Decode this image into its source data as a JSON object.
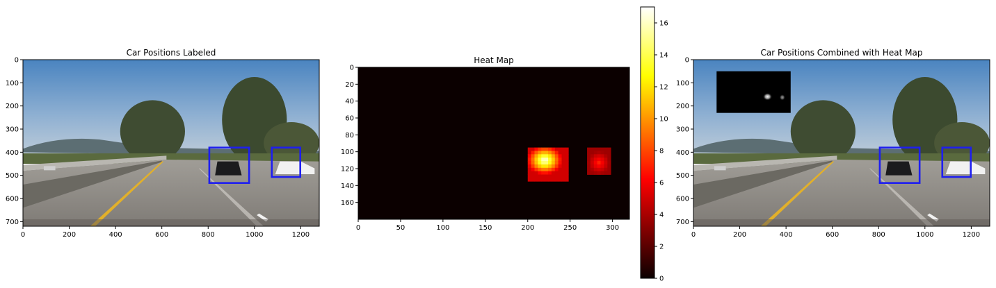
{
  "colors": {
    "bounding_box": "#1e1ef0",
    "sky_top": "#4b86c2",
    "sky_bottom": "#b7c9d9",
    "road": "#8e8b86",
    "lane_line": "#e7b526",
    "heat_background": "#0b0000"
  },
  "chart_data": [
    {
      "type": "image",
      "title": "Car Positions Labeled",
      "xlim": [
        0,
        1280
      ],
      "ylim": [
        720,
        0
      ],
      "xticks": [
        0,
        200,
        400,
        600,
        800,
        1000,
        1200
      ],
      "yticks": [
        0,
        100,
        200,
        300,
        400,
        500,
        600,
        700
      ],
      "boxes": [
        {
          "x0": 805,
          "y0": 380,
          "x1": 977,
          "y1": 533
        },
        {
          "x0": 1075,
          "y0": 380,
          "x1": 1198,
          "y1": 507
        }
      ]
    },
    {
      "type": "heatmap",
      "title": "Heat Map",
      "colormap": "hot",
      "xlim": [
        0,
        320
      ],
      "ylim": [
        180,
        0
      ],
      "xticks": [
        0,
        50,
        100,
        150,
        200,
        250,
        300
      ],
      "yticks": [
        0,
        20,
        40,
        60,
        80,
        100,
        120,
        140,
        160
      ],
      "hotspots": [
        {
          "x0": 200,
          "x1": 245,
          "y0": 95,
          "y1": 132,
          "peak_x": 220,
          "peak_y": 110,
          "peak": 17
        },
        {
          "x0": 270,
          "x1": 298,
          "y0": 95,
          "y1": 125,
          "peak_x": 284,
          "peak_y": 113,
          "peak": 7
        }
      ],
      "colorbar": {
        "min": 0,
        "max": 17,
        "ticks": [
          0,
          2,
          4,
          6,
          8,
          10,
          12,
          14,
          16
        ]
      }
    },
    {
      "type": "image",
      "title": "Car Positions Combined with Heat Map",
      "xlim": [
        0,
        1280
      ],
      "ylim": [
        720,
        0
      ],
      "xticks": [
        0,
        200,
        400,
        600,
        800,
        1000,
        1200
      ],
      "yticks": [
        0,
        100,
        200,
        300,
        400,
        500,
        600,
        700
      ],
      "boxes": [
        {
          "x0": 805,
          "y0": 380,
          "x1": 977,
          "y1": 533
        },
        {
          "x0": 1075,
          "y0": 380,
          "x1": 1198,
          "y1": 507
        }
      ],
      "inset": {
        "x0": 100,
        "y0": 50,
        "x1": 420,
        "y1": 230
      }
    }
  ]
}
